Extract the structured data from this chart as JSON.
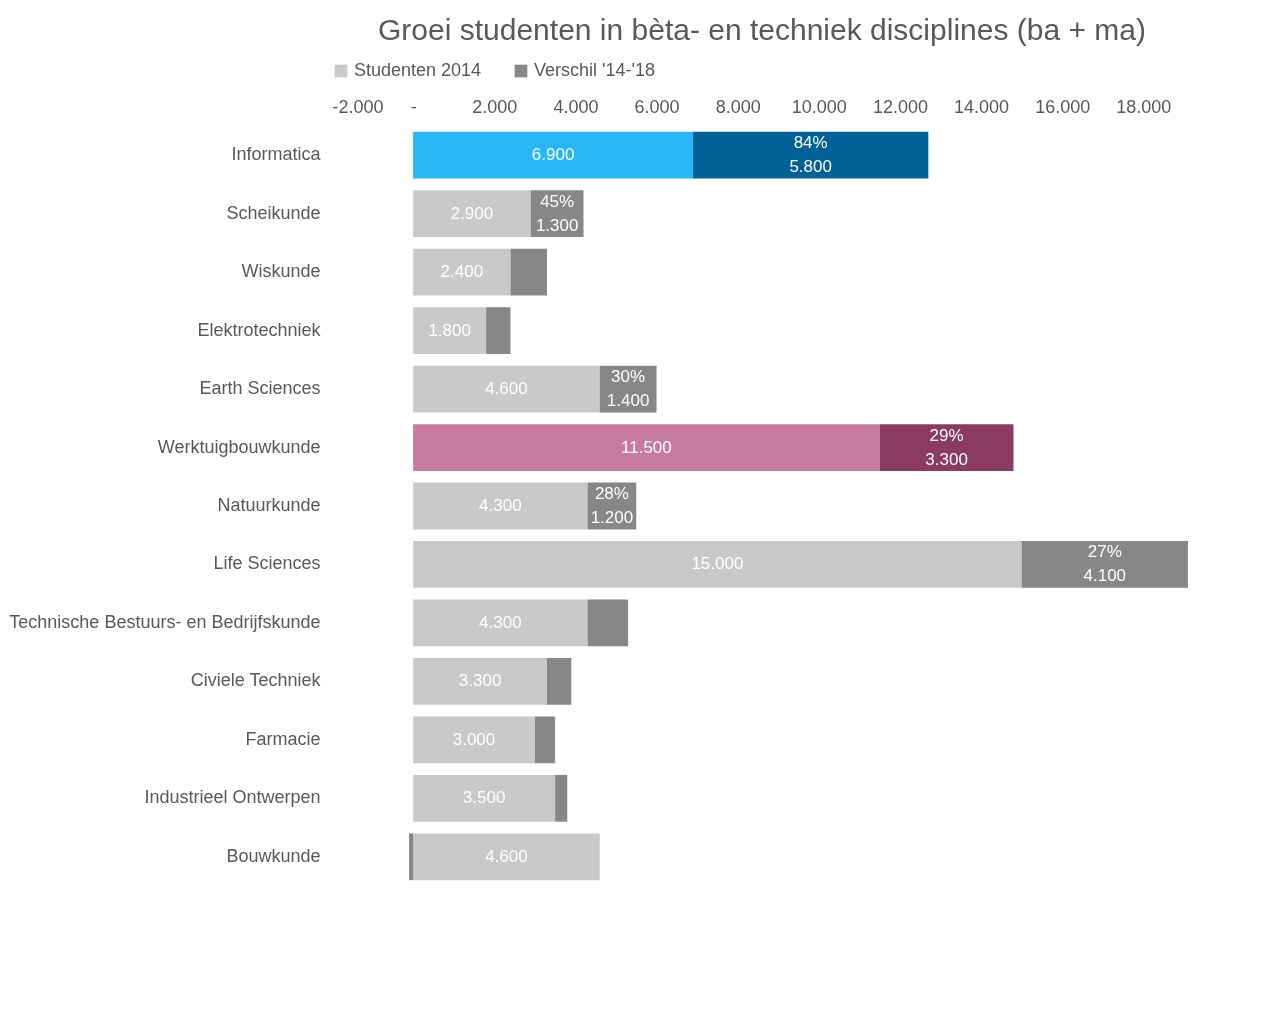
{
  "chart_data": {
    "type": "bar",
    "orientation": "horizontal",
    "stacked": true,
    "title": "Groei studenten in bèta- en techniek disciplines (ba + ma)",
    "categories": [
      "Informatica",
      "Scheikunde",
      "Wiskunde",
      "Elektrotechniek",
      "Earth Sciences",
      "Werktuigbouwkunde",
      "Natuurkunde",
      "Life Sciences",
      "Technische Bestuurs- en Bedrijfskunde",
      "Civiele Techniek",
      "Farmacie",
      "Industrieel Ontwerpen",
      "Bouwkunde"
    ],
    "series": [
      {
        "name": "Studenten 2014",
        "color": "#c9c9c9",
        "colors": [
          "#29b6f6",
          "#c9c9c9",
          "#c9c9c9",
          "#c9c9c9",
          "#c9c9c9",
          "#c77ba0",
          "#c9c9c9",
          "#c9c9c9",
          "#c9c9c9",
          "#c9c9c9",
          "#c9c9c9",
          "#c9c9c9",
          "#c9c9c9"
        ],
        "values": [
          6900,
          2900,
          2400,
          1800,
          4600,
          11500,
          4300,
          15000,
          4300,
          3300,
          3000,
          3500,
          4600
        ],
        "value_labels": [
          "6.900",
          "2.900",
          "2.400",
          "1.800",
          "4.600",
          "11.500",
          "4.300",
          "15.000",
          "4.300",
          "3.300",
          "3.000",
          "3.500",
          "4.600"
        ]
      },
      {
        "name": "Verschil '14-'18",
        "color": "#878787",
        "colors": [
          "#006196",
          "#878787",
          "#878787",
          "#878787",
          "#878787",
          "#8b3a62",
          "#878787",
          "#878787",
          "#878787",
          "#878787",
          "#878787",
          "#878787",
          "#878787"
        ],
        "values": [
          5800,
          1300,
          900,
          600,
          1400,
          3300,
          1200,
          4100,
          1000,
          600,
          500,
          300,
          -100
        ],
        "value_labels": [
          "84%\n5.800",
          "45%\n1.300",
          null,
          null,
          "30%\n1.400",
          "29%\n3.300",
          "28%\n1.200",
          "27%\n4.100",
          null,
          null,
          null,
          null,
          null
        ]
      }
    ],
    "xlim": [
      -2000,
      19200
    ],
    "xticks": [
      {
        "value": -2000,
        "label": "-2.000"
      },
      {
        "value": 0,
        "label": "-"
      },
      {
        "value": 2000,
        "label": "2.000"
      },
      {
        "value": 4000,
        "label": "4.000"
      },
      {
        "value": 6000,
        "label": "6.000"
      },
      {
        "value": 8000,
        "label": "8.000"
      },
      {
        "value": 10000,
        "label": "10.000"
      },
      {
        "value": 12000,
        "label": "12.000"
      },
      {
        "value": 14000,
        "label": "14.000"
      },
      {
        "value": 16000,
        "label": "16.000"
      },
      {
        "value": 18000,
        "label": "18.000"
      }
    ],
    "legend": "top",
    "grid": false
  }
}
